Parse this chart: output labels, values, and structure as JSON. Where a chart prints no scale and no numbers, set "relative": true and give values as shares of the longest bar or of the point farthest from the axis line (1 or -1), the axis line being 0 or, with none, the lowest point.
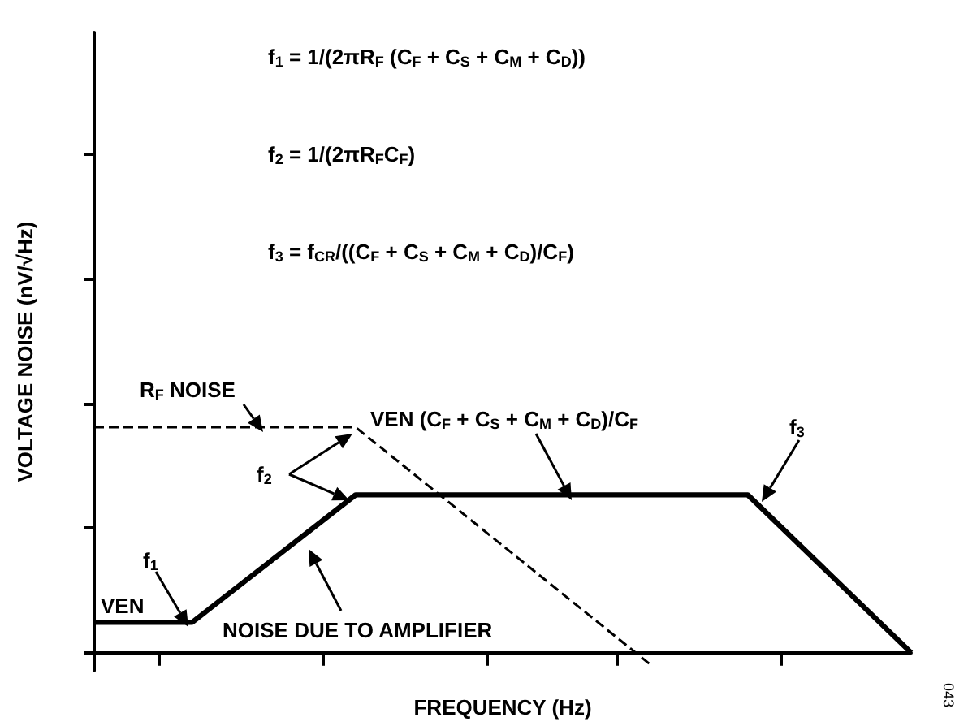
{
  "chart_data": {
    "type": "line",
    "relative": true,
    "xlabel": "FREQUENCY (Hz)",
    "ylabel": "VOLTAGE NOISE (nV/√Hz)",
    "categories": [
      null,
      null,
      null,
      null,
      null,
      null,
      null,
      null,
      null,
      null,
      null,
      null,
      null,
      null,
      null,
      null,
      null,
      null,
      null,
      null,
      null,
      null,
      null,
      null,
      null,
      null
    ],
    "tick_labels": false,
    "grid": false,
    "marker": "none",
    "series": [
      {
        "color": "#000000",
        "line_style": "solid",
        "values": [
          0.135,
          null,
          null,
          0.135,
          null,
          null,
          null,
          null,
          0.7,
          null,
          null,
          null,
          null,
          null,
          null,
          null,
          null,
          null,
          null,
          null,
          0.7,
          null,
          null,
          null,
          null,
          0
        ]
      },
      {
        "color": "#000000",
        "line_style": "dashed",
        "values": [
          1,
          null,
          null,
          null,
          null,
          null,
          null,
          null,
          1,
          null,
          null,
          null,
          null,
          null,
          null,
          null,
          null,
          -0.05,
          null,
          null,
          null,
          null,
          null,
          null,
          null,
          null
        ]
      }
    ],
    "annotations": [
      "f$_{1}$ = 1/(2πR$_{F}$ (C$_{F}$ + C$_{S}$ + C$_{M}$ + C$_{D}$))",
      "f$_{2}$ = 1/(2πR$_{F}$C$_{F}$)",
      "f$_{3}$ = f$_{CR}$/((C$_{F}$ + C$_{S}$ + C$_{M}$ + C$_{D}$)/C$_{F}$)",
      "R$_{F}$ NOISE",
      "VEN (C$_{F}$ + C$_{S}$ + C$_{M}$ + C$_{D}$)/C$_{F}$",
      "f$_{3}$",
      "f$_{2}$",
      "f$_{1}$",
      "VEN",
      "NOISE DUE TO AMPLIFIER",
      "043"
    ]
  }
}
